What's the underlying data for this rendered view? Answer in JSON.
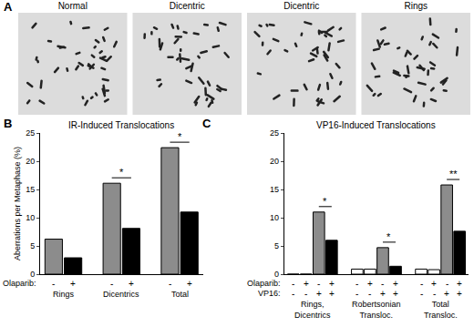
{
  "panel_labels": [
    "A",
    "B",
    "C"
  ],
  "panel_a": {
    "images": [
      "Normal",
      "Dicentric",
      "Dicentric",
      "Rings"
    ]
  },
  "chart_data": [
    {
      "type": "bar",
      "title": "IR-Induced Translocations",
      "ylabel": "Aberrations per Metaphase (%)",
      "categories": [
        "Rings",
        "Dicentrics",
        "Total"
      ],
      "conditions": [
        {
          "label": "Olaparib:",
          "values": [
            "-",
            "+"
          ]
        }
      ],
      "series": [
        {
          "color": "#8c8c8c",
          "values": [
            6.2,
            16.1,
            22.4
          ]
        },
        {
          "color": "#000000",
          "values": [
            2.9,
            8.1,
            11.0
          ]
        }
      ],
      "ylim": [
        0,
        25
      ],
      "yticks": [
        0,
        5,
        10,
        15,
        20,
        25
      ],
      "annotations": [
        {
          "text": "*",
          "category": "Dicentrics"
        },
        {
          "text": "*",
          "category": "Total"
        }
      ],
      "legend": false,
      "grid": false
    },
    {
      "type": "bar",
      "title": "VP16-Induced Translocations",
      "categories": [
        "Rings,\nDicentrics",
        "Robertsonian\nTransloc.",
        "Total\nTransloc."
      ],
      "conditions": [
        {
          "label": "Olaparib:",
          "values": [
            "-",
            "+",
            "-",
            "+"
          ]
        },
        {
          "label": "VP16:",
          "values": [
            "-",
            "-",
            "+",
            "+"
          ]
        }
      ],
      "series": [
        {
          "color": "#ffffff",
          "values": [
            0,
            0.9,
            0.9
          ]
        },
        {
          "color": "#ffffff",
          "values": [
            0,
            0.9,
            0.8
          ]
        },
        {
          "color": "#8c8c8c",
          "values": [
            11.0,
            4.7,
            15.8
          ]
        },
        {
          "color": "#000000",
          "values": [
            6.0,
            1.4,
            7.6
          ]
        }
      ],
      "ylim": [
        0,
        25
      ],
      "yticks": [
        0,
        5,
        10,
        15,
        20,
        25
      ],
      "annotations": [
        {
          "text": "*",
          "category": "Rings,\nDicentrics"
        },
        {
          "text": "*",
          "category": "Robertsonian\nTransloc."
        },
        {
          "text": "**",
          "category": "Total\nTransloc."
        }
      ],
      "legend": false,
      "grid": false
    }
  ]
}
